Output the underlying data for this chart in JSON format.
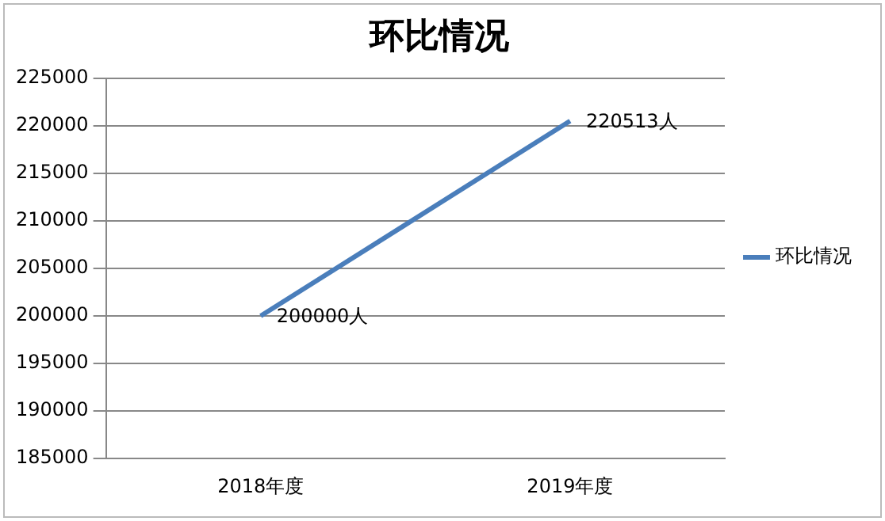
{
  "chart_data": {
    "type": "line",
    "title": "环比情况",
    "categories": [
      "2018年度",
      "2019年度"
    ],
    "series": [
      {
        "name": "环比情况",
        "color": "#4a7ebb",
        "values": [
          200000,
          220513
        ],
        "value_labels": [
          "200000人",
          "220513人"
        ]
      }
    ],
    "ylim": [
      185000,
      225000
    ],
    "yticks": [
      185000,
      190000,
      195000,
      200000,
      205000,
      210000,
      215000,
      220000,
      225000
    ],
    "grid": "y",
    "legend": "right",
    "marker": "none",
    "line_style": "solid"
  }
}
